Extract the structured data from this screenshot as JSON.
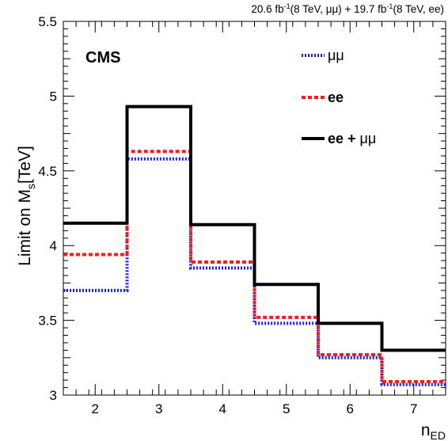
{
  "chart_data": {
    "type": "line",
    "title": "",
    "header": {
      "part1": "20.6 fb",
      "sup1": "-1",
      "part2": "(8 TeV,  μμ) + 19.7 fb",
      "sup2": "-1",
      "part3": "(8 TeV, ee)"
    },
    "label": "CMS",
    "xlabel": {
      "main": "n",
      "sub": "ED"
    },
    "ylabel": {
      "main": "Limit on M",
      "sub": "s",
      "unit": "[TeV]"
    },
    "xlim": [
      1.5,
      7.5
    ],
    "ylim": [
      3.0,
      5.5
    ],
    "x_ticks": [
      2,
      3,
      4,
      5,
      6,
      7
    ],
    "x_tick_labels": [
      "2",
      "3",
      "4",
      "5",
      "6",
      "7"
    ],
    "y_ticks": [
      3,
      3.5,
      4,
      4.5,
      5,
      5.5
    ],
    "y_tick_labels": [
      "3",
      "3.5",
      "4",
      "4.5",
      "5",
      "5.5"
    ],
    "grid": false,
    "legend_position": "top-right",
    "x": [
      2,
      3,
      4,
      5,
      6,
      7
    ],
    "bin_edges": [
      1.5,
      2.5,
      3.5,
      4.5,
      5.5,
      6.5,
      7.5
    ],
    "series": [
      {
        "name": "μμ",
        "values": [
          3.7,
          4.58,
          3.85,
          3.48,
          3.25,
          3.07
        ],
        "color": "#1a1aff",
        "style": "dotted"
      },
      {
        "name": "ee",
        "values": [
          3.94,
          4.63,
          3.89,
          3.52,
          3.27,
          3.09
        ],
        "color": "#ff1a1a",
        "style": "dashed"
      },
      {
        "name": "ee + μμ",
        "values": [
          4.15,
          4.93,
          4.14,
          3.74,
          3.48,
          3.3
        ],
        "color": "#000000",
        "style": "solid"
      }
    ],
    "legend": [
      {
        "prefix": "",
        "suffix": "μμ"
      },
      {
        "prefix": "ee",
        "suffix": ""
      },
      {
        "prefix": "ee +",
        "suffix": " μμ"
      }
    ]
  }
}
